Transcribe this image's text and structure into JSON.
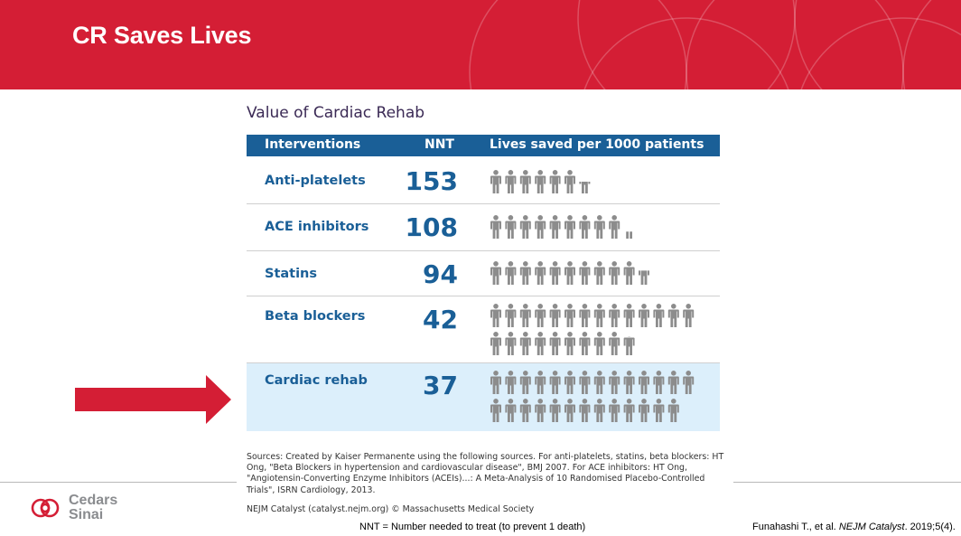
{
  "slide": {
    "title": "CR Saves Lives"
  },
  "table": {
    "title": "Value of Cardiac Rehab",
    "headers": [
      "Interventions",
      "NNT",
      "Lives saved per 1000 patients"
    ],
    "rows": [
      {
        "name": "Anti-platelets",
        "nnt": "153",
        "lives_saved": 6.5,
        "highlight": false
      },
      {
        "name": "ACE inhibitors",
        "nnt": "108",
        "lives_saved": 9.3,
        "highlight": false
      },
      {
        "name": "Statins",
        "nnt": "94",
        "lives_saved": 10.6,
        "highlight": false
      },
      {
        "name": "Beta blockers",
        "nnt": "42",
        "lives_saved": 23.8,
        "highlight": false
      },
      {
        "name": "Cardiac rehab",
        "nnt": "37",
        "lives_saved": 27,
        "highlight": true
      }
    ]
  },
  "sources": {
    "text": "Sources: Created by Kaiser Permanente using the following sources. For anti-platelets, statins, beta blockers: HT Ong, \"Beta Blockers in hypertension and cardiovascular disease\", BMJ 2007. For ACE inhibitors: HT Ong, \"Angiotensin-Converting Enzyme Inhibitors (ACEIs)...: A Meta-Analysis of 10 Randomised Placebo-Controlled Trials\", ISRN Cardiology, 2013.",
    "nejm": "NEJM Catalyst (catalyst.nejm.org) © Massachusetts Medical Society"
  },
  "footer": {
    "footnote": "NNT = Number needed to treat (to prevent 1 death)",
    "citation_authors": "Funahashi T., et al. ",
    "citation_journal": "NEJM Catalyst",
    "citation_rest": ". 2019;5(4)."
  },
  "logo": {
    "line1": "Cedars",
    "line2": "Sinai"
  },
  "colors": {
    "banner": "#d41e35",
    "header": "#1a5f97",
    "highlight_row": "#dceffb",
    "person": "#8c8c8c",
    "arrow": "#d41e35"
  },
  "icons": {
    "person": "person-icon",
    "arrow": "arrow-right-icon",
    "logo": "cedars-sinai-logo-icon"
  }
}
